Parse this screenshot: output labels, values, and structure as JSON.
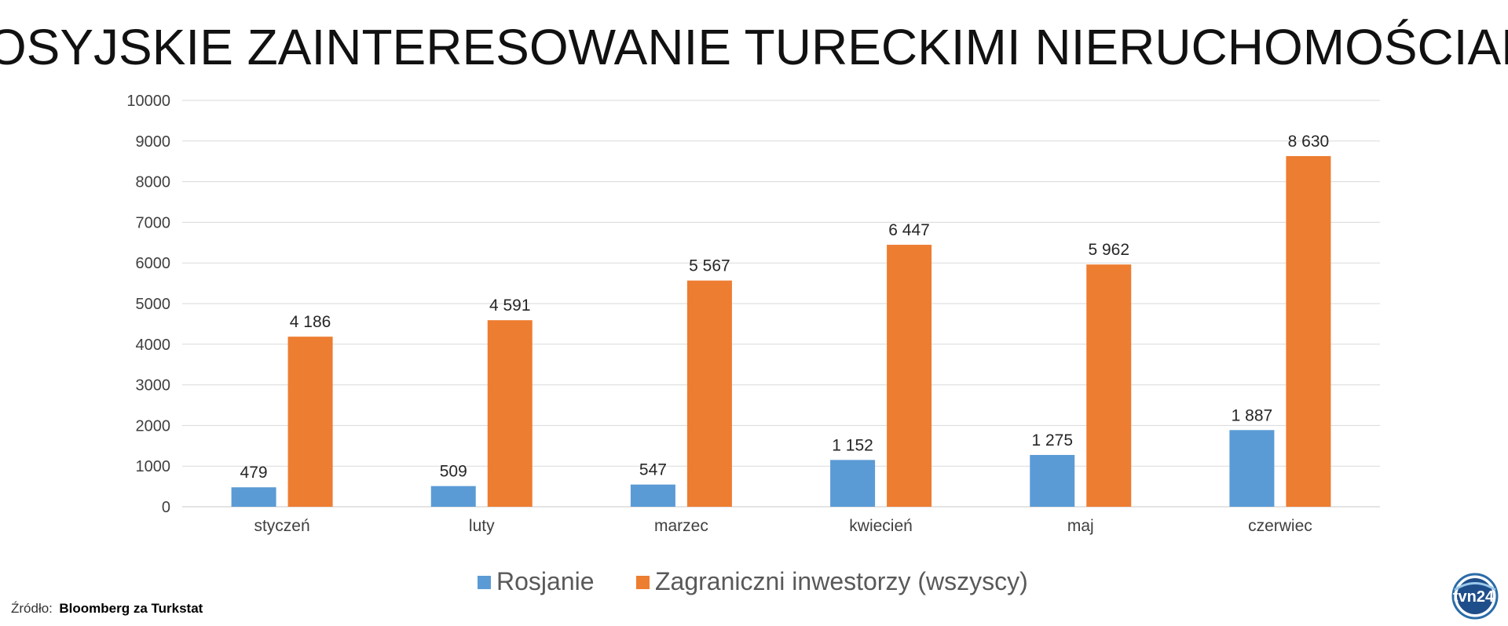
{
  "chart_data": {
    "type": "bar",
    "title": "ROSYJSKIE ZAINTERESOWANIE TURECKIMI NIERUCHOMOŚCIAMI",
    "categories": [
      "styczeń",
      "luty",
      "marzec",
      "kwiecień",
      "maj",
      "czerwiec"
    ],
    "series": [
      {
        "name": "Rosjanie",
        "color": "#5b9bd5",
        "values": [
          479,
          509,
          547,
          1152,
          1275,
          1887
        ],
        "labels": [
          "479",
          "509",
          "547",
          "1 152",
          "1 275",
          "1 887"
        ]
      },
      {
        "name": "Zagraniczni inwestorzy (wszyscy)",
        "color": "#ed7d31",
        "values": [
          4186,
          4591,
          5567,
          6447,
          5962,
          8630
        ],
        "labels": [
          "4 186",
          "4 591",
          "5 567",
          "6 447",
          "5 962",
          "8 630"
        ]
      }
    ],
    "yticks": [
      "0",
      "1000",
      "2000",
      "3000",
      "4000",
      "5000",
      "6000",
      "7000",
      "8000",
      "9000",
      "10000"
    ],
    "ylim": [
      0,
      10000
    ],
    "grid": true,
    "legend_position": "bottom"
  },
  "source": {
    "prefix": "Źródło:",
    "text": "Bloomberg za Turkstat"
  },
  "logo": {
    "name": "tvn24-logo",
    "text": "tvn24"
  }
}
